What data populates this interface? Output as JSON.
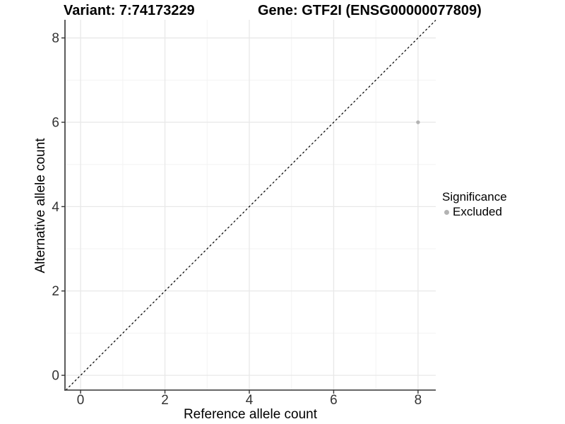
{
  "chart_data": {
    "type": "scatter",
    "titles": {
      "variant": "Variant: 7:74173229",
      "gene": "Gene: GTF2I (ENSG00000077809)"
    },
    "xlabel": "Reference allele count",
    "ylabel": "Alternative allele count",
    "xlim": [
      -0.37,
      8.42
    ],
    "ylim": [
      -0.35,
      8.43
    ],
    "x_major_ticks": [
      0,
      2,
      4,
      6,
      8
    ],
    "y_major_ticks": [
      0,
      2,
      4,
      6,
      8
    ],
    "x_minor_ticks": [
      1,
      3,
      5,
      7
    ],
    "y_minor_ticks": [
      1,
      3,
      5,
      7
    ],
    "grid": true,
    "points": [
      {
        "x": 8,
        "y": 6,
        "significance": "Excluded"
      }
    ],
    "reference_line": {
      "slope": 1,
      "intercept": 0,
      "style": "dashed",
      "color": "#000000"
    },
    "legend": {
      "title": "Significance",
      "position": "right",
      "items": [
        {
          "label": "Excluded",
          "color": "#b3b3b3",
          "marker": "circle"
        }
      ]
    },
    "colors": {
      "point_excluded": "#b3b3b3",
      "grid_major": "#e8e8e8",
      "grid_minor": "#f3f3f3",
      "axis": "#333333",
      "tick_text": "#333333",
      "text": "#000000",
      "background": "#ffffff"
    }
  }
}
